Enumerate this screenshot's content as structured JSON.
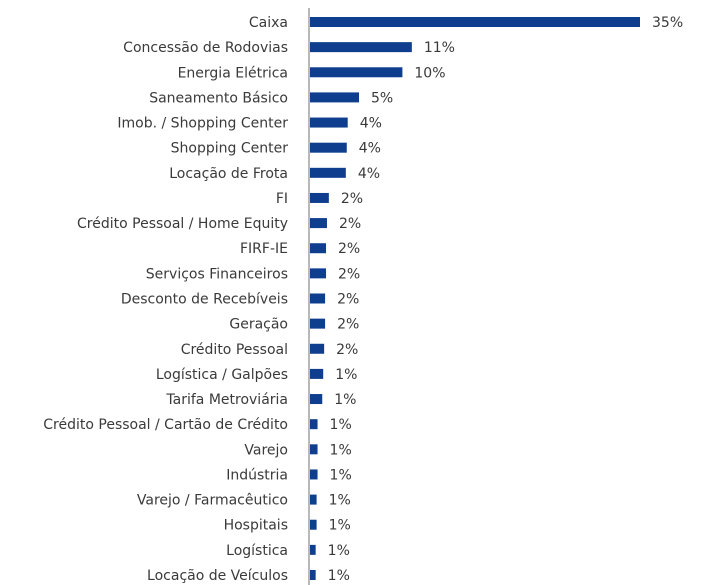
{
  "chart_data": {
    "type": "bar",
    "orientation": "horizontal",
    "color": "#0f3e8e",
    "categories": [
      "Caixa",
      "Concessão de Rodovias",
      "Energia Elétrica",
      "Saneamento Básico",
      "Imob. / Shopping Center",
      "Shopping Center",
      "Locação de Frota",
      "FI",
      "Crédito Pessoal / Home Equity",
      "FIRF-IE",
      "Serviços Financeiros",
      "Desconto de Recebíveis",
      "Geração",
      "Crédito Pessoal",
      "Logística / Galpões",
      "Tarifa Metroviária",
      "Crédito Pessoal / Cartão de Crédito",
      "Varejo",
      "Indústria",
      "Varejo / Farmacêutico",
      "Hospitais",
      "Logística",
      "Locação de Veículos"
    ],
    "values": [
      35,
      10.8,
      9.8,
      5.2,
      4.0,
      3.9,
      3.8,
      2.0,
      1.8,
      1.7,
      1.7,
      1.6,
      1.6,
      1.5,
      1.4,
      1.3,
      0.8,
      0.8,
      0.8,
      0.7,
      0.7,
      0.6,
      0.6
    ],
    "value_labels": [
      "35%",
      "11%",
      "10%",
      "5%",
      "4%",
      "4%",
      "4%",
      "2%",
      "2%",
      "2%",
      "2%",
      "2%",
      "2%",
      "2%",
      "1%",
      "1%",
      "1%",
      "1%",
      "1%",
      "1%",
      "1%",
      "1%",
      "1%"
    ]
  }
}
